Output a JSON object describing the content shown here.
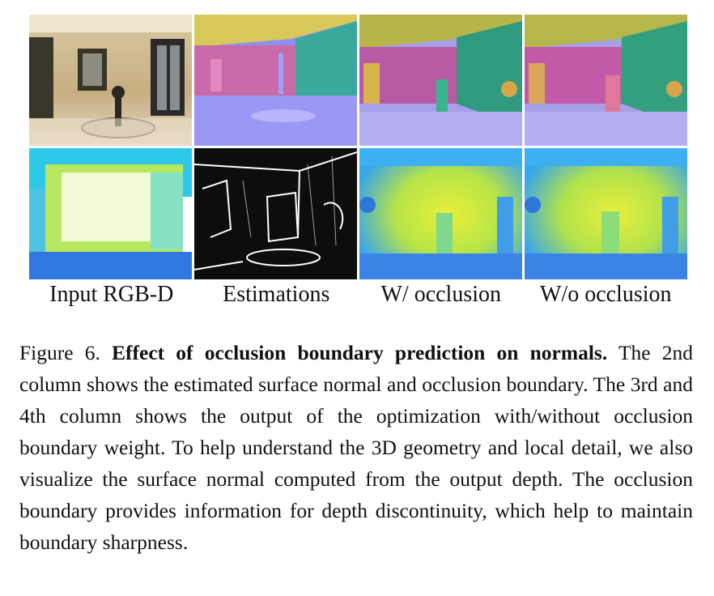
{
  "figure": {
    "column_labels": [
      "Input RGB-D",
      "Estimations",
      "W/ occlusion",
      "W/o occlusion"
    ],
    "caption_prefix": "Figure 6. ",
    "caption_title": "Effect of occlusion boundary prediction on normals.",
    "caption_body": "The 2nd column shows the estimated surface normal and occlusion boundary. The 3rd and 4th column shows the output of the optimization with/without occlusion boundary weight. To help understand the 3D geometry and local detail, we also visualize the surface normal computed from the output depth. The occlusion boundary provides information for depth discontinuity, which help to maintain boundary sharpness."
  }
}
